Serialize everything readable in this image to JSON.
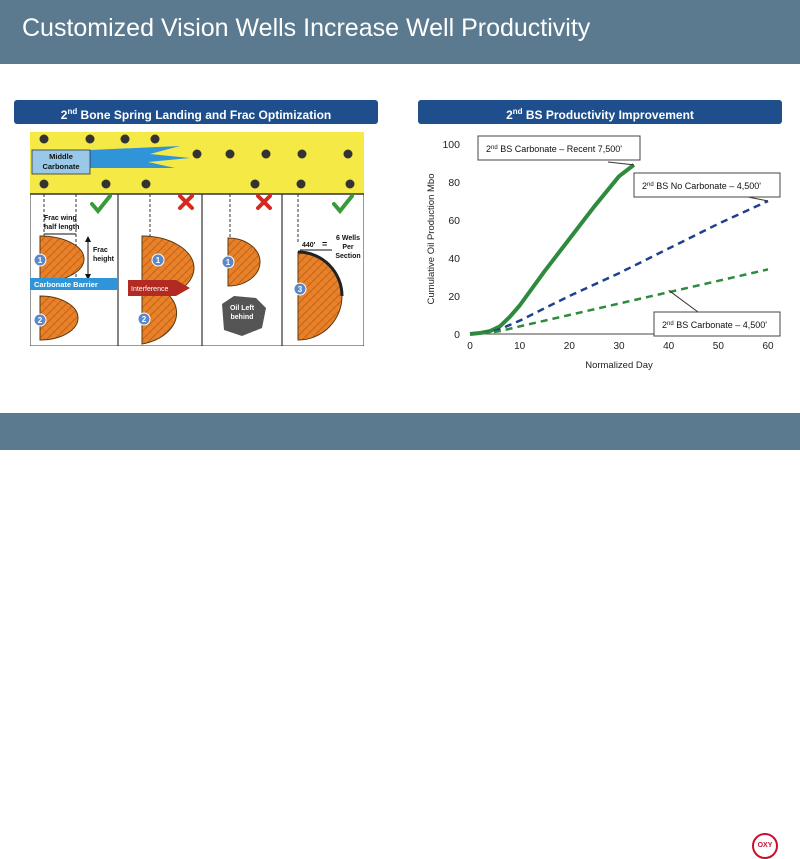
{
  "slide": {
    "title": "Customized Vision Wells Increase Well Productivity"
  },
  "left_panel": {
    "heading_pre": "2",
    "heading_sup": "nd",
    "heading_post": " Bone Spring Landing and Frac Optimization",
    "middle_carbonate": [
      "Middle",
      "Carbonate"
    ],
    "frac_wing": [
      "Frac wing",
      "half length"
    ],
    "frac_height": [
      "Frac",
      "height"
    ],
    "carbonate_barrier": "Carbonate Barrier",
    "interference": "Interference",
    "oil_left": [
      "Oil Left",
      "behind"
    ],
    "spacing": "440'",
    "spacing_eq": "=",
    "wells_per_section": [
      "6 Wells",
      "Per",
      "Section"
    ],
    "well_numbers": [
      "1",
      "2",
      "1",
      "2",
      "1",
      "3"
    ],
    "colors": {
      "carbonate_yellow": "#f5ea45",
      "frac_orange": "#e8822a",
      "check_green": "#3a9a3a",
      "cross_red": "#d42a1f"
    }
  },
  "right_panel": {
    "heading_pre": "2",
    "heading_sup": "nd",
    "heading_post": " BS Productivity Improvement"
  },
  "chart_data": {
    "type": "line",
    "xlabel": "Normalized Day",
    "ylabel": "Cumulative Oil Production Mbo",
    "xlim": [
      0,
      60
    ],
    "ylim": [
      0,
      100
    ],
    "xticks": [
      0,
      10,
      20,
      30,
      40,
      50,
      60
    ],
    "yticks": [
      0,
      20,
      40,
      60,
      80,
      100
    ],
    "series": [
      {
        "name": "2nd BS Carbonate – Recent 7,500'",
        "name_pre": "2",
        "name_sup": "nd",
        "name_post": " BS Carbonate – Recent 7,500'",
        "color": "#2e8b3e",
        "style": "solid",
        "x": [
          0,
          2,
          4,
          6,
          8,
          10,
          15,
          20,
          25,
          30,
          33
        ],
        "y": [
          0,
          0.5,
          1.5,
          4,
          9,
          15,
          33,
          50,
          67,
          83,
          89
        ]
      },
      {
        "name": "2nd BS No Carbonate – 4,500'",
        "name_pre": "2",
        "name_sup": "nd",
        "name_post": " BS No Carbonate – 4,500'",
        "color": "#1f3f8f",
        "style": "dashed",
        "x": [
          0,
          2,
          4,
          6,
          10,
          20,
          30,
          40,
          50,
          60
        ],
        "y": [
          0,
          0.3,
          1,
          2.5,
          7,
          20,
          32,
          45,
          58,
          70
        ]
      },
      {
        "name": "2nd BS Carbonate – 4,500'",
        "name_pre": "2",
        "name_sup": "nd",
        "name_post": " BS Carbonate – 4,500'",
        "color": "#2e8b3e",
        "style": "dashed",
        "x": [
          0,
          2,
          4,
          6,
          10,
          20,
          30,
          40,
          50,
          60
        ],
        "y": [
          0,
          0.2,
          0.7,
          1.5,
          4,
          10,
          16,
          22,
          28,
          34
        ]
      }
    ]
  }
}
